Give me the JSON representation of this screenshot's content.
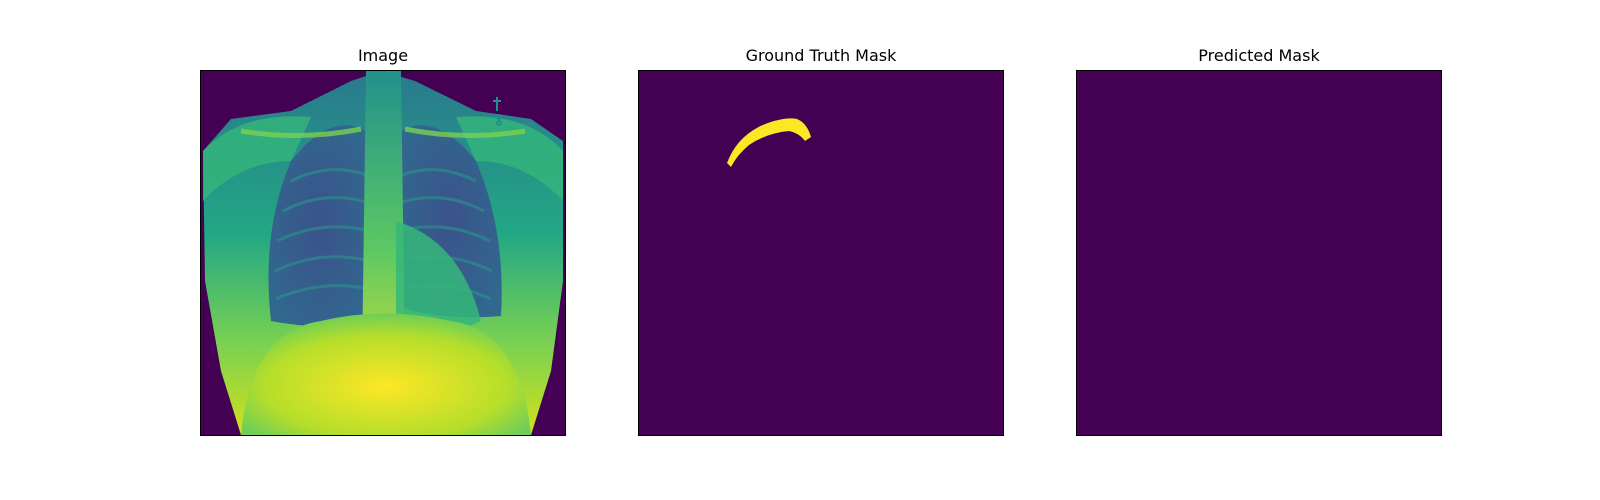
{
  "figure": {
    "panels": [
      {
        "title": "Image"
      },
      {
        "title": "Ground Truth Mask"
      },
      {
        "title": "Predicted Mask"
      }
    ],
    "colors": {
      "mask_background": "#440154",
      "mask_foreground": "#fde725"
    }
  }
}
